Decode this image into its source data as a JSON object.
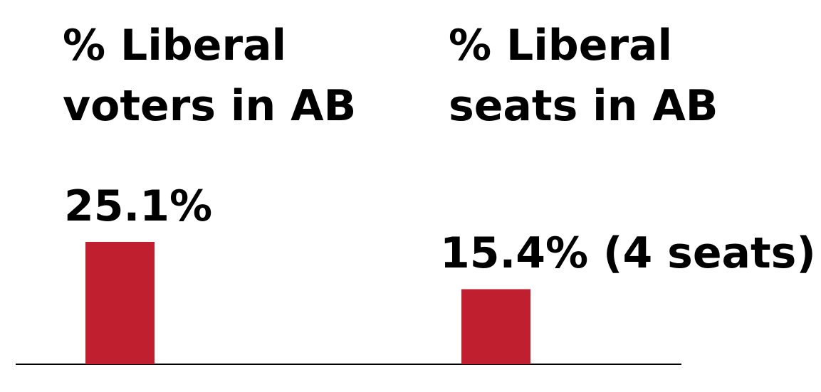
{
  "chart_data": {
    "type": "bar",
    "categories": [
      "% Liberal voters in AB",
      "% Liberal seats in AB"
    ],
    "values": [
      25.1,
      15.4
    ],
    "value_labels": [
      "25.1%",
      "15.4% (4 seats)"
    ],
    "color": "#c01f2f"
  }
}
